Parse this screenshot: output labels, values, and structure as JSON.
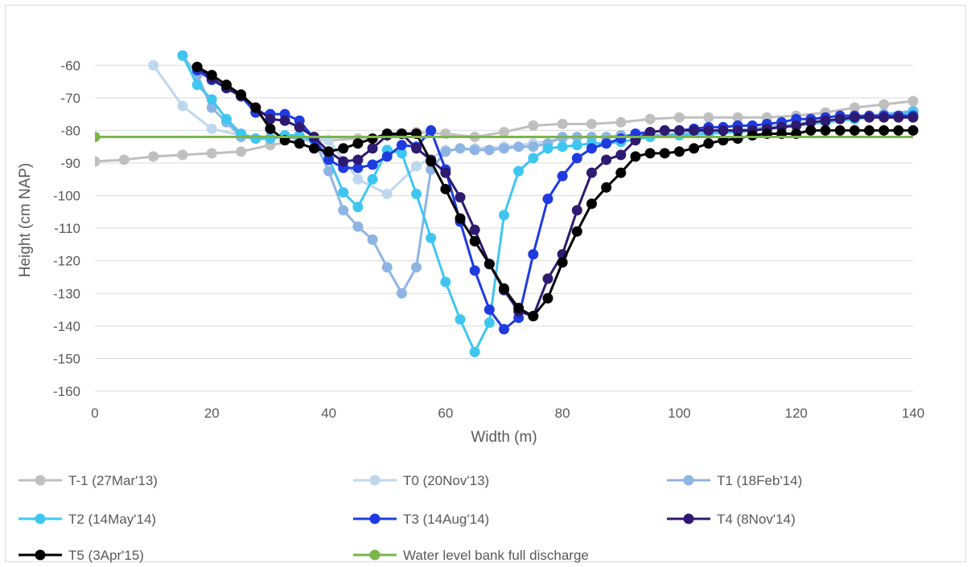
{
  "chart_data": {
    "type": "line",
    "title": "",
    "xlabel": "Width (m)",
    "ylabel": "Height  (cm NAP)",
    "xlim": [
      0,
      140
    ],
    "ylim": [
      -160,
      -55
    ],
    "x_ticks": [
      0,
      20,
      40,
      60,
      80,
      100,
      120,
      140
    ],
    "y_ticks": [
      -60,
      -70,
      -80,
      -90,
      -100,
      -110,
      -120,
      -130,
      -140,
      -150,
      -160
    ],
    "grid": "horizontal",
    "legend_position": "bottom",
    "series": [
      {
        "name": "T-1 (27Mar'13)",
        "color": "#bfbfbf",
        "x": [
          0,
          5,
          10,
          15,
          20,
          25,
          30,
          35,
          40,
          45,
          50,
          55,
          60,
          65,
          70,
          75,
          80,
          85,
          90,
          95,
          100,
          105,
          110,
          115,
          120,
          125,
          130,
          135,
          140
        ],
        "y": [
          -89.5,
          -89,
          -88,
          -87.5,
          -87,
          -86.5,
          -84.5,
          -83,
          -83,
          -82.5,
          -81.5,
          -80.5,
          -81,
          -82,
          -80.5,
          -78.5,
          -78,
          -78,
          -77.5,
          -76.5,
          -76,
          -76,
          -76,
          -76,
          -75.5,
          -74.5,
          -73,
          -72,
          -71
        ]
      },
      {
        "name": "T0 (20Nov'13)",
        "color": "#bdd7ee",
        "x": [
          10,
          15,
          20,
          25,
          30,
          35,
          40,
          45,
          50,
          55,
          60,
          65,
          70,
          75,
          80,
          85,
          90,
          95,
          100,
          105,
          110,
          115,
          120,
          125,
          130,
          135,
          140
        ],
        "y": [
          -60,
          -72.5,
          -79.5,
          -81.5,
          -82,
          -82,
          -83,
          -95,
          -99.5,
          -91,
          -86,
          -85.5,
          -85,
          -84,
          -82.5,
          -82,
          -82,
          -82,
          -81,
          -80.5,
          -80,
          -79.5,
          -78.5,
          -77.5,
          -76.5,
          -75,
          -74
        ]
      },
      {
        "name": "T1 (18Feb'14)",
        "color": "#8eb4e3",
        "x": [
          15,
          17.5,
          20,
          22.5,
          25,
          27.5,
          30,
          32.5,
          35,
          37.5,
          40,
          42.5,
          45,
          47.5,
          50,
          52.5,
          55,
          57.5,
          60,
          62.5,
          65,
          67.5,
          70,
          72.5,
          75,
          77.5,
          80,
          82.5,
          85,
          87.5,
          90,
          95,
          100,
          105,
          110,
          115,
          120,
          125,
          130,
          135,
          140
        ],
        "y": [
          -57,
          -63,
          -73,
          -77.5,
          -82,
          -82.5,
          -82.5,
          -82,
          -82.5,
          -83,
          -92.5,
          -104.5,
          -109.5,
          -113.5,
          -122,
          -130,
          -122,
          -92,
          -86.5,
          -85.5,
          -86,
          -86,
          -85.5,
          -85,
          -85,
          -84,
          -82,
          -82,
          -82,
          -82,
          -81.5,
          -81.5,
          -81,
          -80.5,
          -80,
          -79,
          -78,
          -77,
          -76,
          -75,
          -74
        ]
      },
      {
        "name": "T2 (14May'14)",
        "color": "#3fc6f0",
        "x": [
          15,
          17.5,
          20,
          22.5,
          25,
          27.5,
          30,
          32.5,
          35,
          37.5,
          40,
          42.5,
          45,
          47.5,
          50,
          52.5,
          55,
          57.5,
          60,
          62.5,
          65,
          67.5,
          70,
          72.5,
          75,
          77.5,
          80,
          82.5,
          85,
          87.5,
          90,
          95,
          100,
          105,
          110,
          115,
          120,
          125,
          130,
          135,
          140
        ],
        "y": [
          -57,
          -66,
          -70.5,
          -76.5,
          -81,
          -82.5,
          -82.5,
          -81.5,
          -81.5,
          -83,
          -88.5,
          -99,
          -103.5,
          -95,
          -86,
          -87,
          -99.5,
          -113,
          -126.5,
          -138,
          -148,
          -139,
          -106,
          -92.5,
          -88.5,
          -85.5,
          -85,
          -84.5,
          -84,
          -84,
          -83.5,
          -82,
          -81.5,
          -81,
          -80.5,
          -79.5,
          -78.5,
          -77.5,
          -76.5,
          -75.5,
          -74.5
        ]
      },
      {
        "name": "T3 (14Aug'14)",
        "color": "#1f3be0",
        "x": [
          17.5,
          20,
          22.5,
          25,
          27.5,
          30,
          32.5,
          35,
          37.5,
          40,
          42.5,
          45,
          47.5,
          50,
          52.5,
          55,
          57.5,
          60,
          62.5,
          65,
          67.5,
          70,
          72.5,
          75,
          77.5,
          80,
          82.5,
          85,
          87.5,
          90,
          92.5,
          95,
          97.5,
          100,
          102.5,
          105,
          107.5,
          110,
          112.5,
          115,
          117.5,
          120,
          122.5,
          125,
          127.5,
          130,
          132.5,
          135,
          137.5,
          140
        ],
        "y": [
          -61.5,
          -64.5,
          -67,
          -69.5,
          -74.5,
          -75,
          -75,
          -77,
          -82.5,
          -89,
          -91.5,
          -91.5,
          -90.5,
          -88,
          -84.5,
          -85,
          -80,
          -92,
          -108,
          -123,
          -135,
          -141,
          -137.5,
          -118,
          -101,
          -94,
          -88.5,
          -85.5,
          -84,
          -82.5,
          -81,
          -80.5,
          -80,
          -80,
          -79.5,
          -79,
          -79,
          -78.5,
          -78.5,
          -78,
          -77.5,
          -76.5,
          -76.5,
          -76,
          -75.5,
          -75.5,
          -75.5,
          -75.5,
          -75.5,
          -75.5
        ]
      },
      {
        "name": "T4 (8Nov'14)",
        "color": "#2e1a70",
        "x": [
          17.5,
          20,
          22.5,
          25,
          27.5,
          30,
          32.5,
          35,
          37.5,
          40,
          42.5,
          45,
          47.5,
          50,
          52.5,
          55,
          57.5,
          60,
          62.5,
          65,
          67.5,
          70,
          72.5,
          75,
          77.5,
          80,
          82.5,
          85,
          87.5,
          90,
          92.5,
          95,
          97.5,
          100,
          102.5,
          105,
          107.5,
          110,
          112.5,
          115,
          117.5,
          120,
          122.5,
          125,
          127.5,
          130,
          132.5,
          135,
          137.5,
          140
        ],
        "y": [
          -60.5,
          -64,
          -67,
          -69.5,
          -73,
          -76.5,
          -77,
          -79,
          -82,
          -86.5,
          -89.5,
          -89,
          -85.5,
          -81.5,
          -81,
          -85.5,
          -89,
          -93,
          -100.5,
          -110.5,
          -121,
          -129,
          -135.5,
          -137,
          -125.5,
          -118,
          -104.5,
          -93,
          -89,
          -87.5,
          -83,
          -80.5,
          -80,
          -80,
          -80,
          -80,
          -80,
          -80,
          -80,
          -79.5,
          -79,
          -78.5,
          -77.5,
          -77,
          -76.5,
          -76,
          -76,
          -76,
          -76,
          -76
        ]
      },
      {
        "name": "T5 (3Apr'15)",
        "color": "#000000",
        "x": [
          17.5,
          20,
          22.5,
          25,
          27.5,
          30,
          32.5,
          35,
          37.5,
          40,
          42.5,
          45,
          47.5,
          50,
          52.5,
          55,
          57.5,
          60,
          62.5,
          65,
          67.5,
          70,
          72.5,
          75,
          77.5,
          80,
          82.5,
          85,
          87.5,
          90,
          92.5,
          95,
          97.5,
          100,
          102.5,
          105,
          107.5,
          110,
          112.5,
          115,
          117.5,
          120,
          122.5,
          125,
          127.5,
          130,
          132.5,
          135,
          137.5,
          140
        ],
        "y": [
          -60.5,
          -63,
          -66,
          -69,
          -73,
          -79.5,
          -83,
          -84,
          -85.5,
          -86.5,
          -85.5,
          -84,
          -82.5,
          -81,
          -81,
          -81,
          -89.5,
          -98,
          -107,
          -114,
          -121,
          -128.5,
          -134.5,
          -137,
          -131.5,
          -120.5,
          -111,
          -102.5,
          -97.5,
          -93,
          -88,
          -87,
          -87,
          -86.5,
          -85.5,
          -84,
          -83,
          -82.5,
          -81.5,
          -81,
          -81,
          -81,
          -80,
          -80,
          -80,
          -80,
          -80,
          -80,
          -80,
          -80
        ]
      },
      {
        "name": "Water level bank full discharge",
        "color": "#7ab648",
        "x": [
          0,
          140
        ],
        "y": [
          -82,
          -82
        ],
        "markers": "first-point-only"
      }
    ]
  }
}
